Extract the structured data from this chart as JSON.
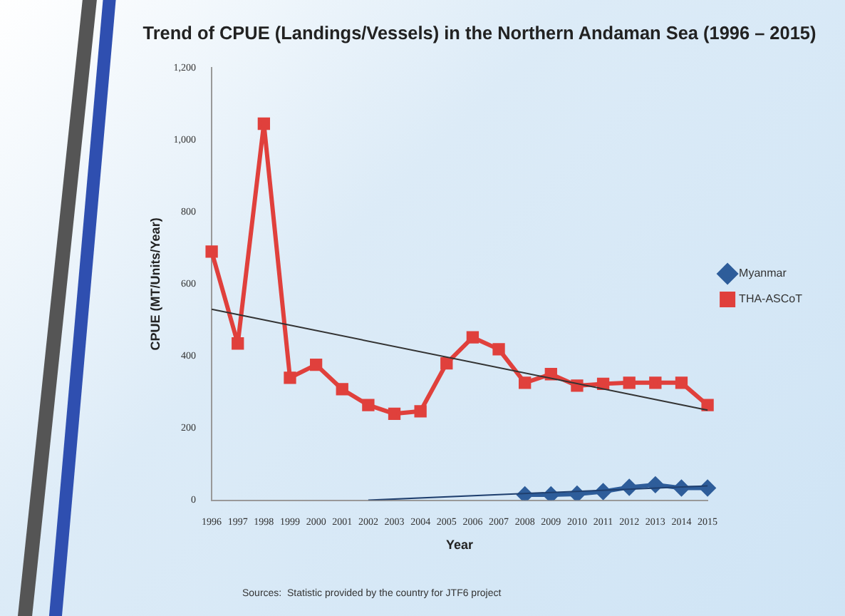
{
  "chart_data": {
    "type": "line",
    "title": "Trend of CPUE (Landings/Vessels) in the Northern Andaman Sea (1996 – 2015)",
    "xlabel": "Year",
    "ylabel": "CPUE (MT/Units/Year)",
    "categories": [
      "1996",
      "1997",
      "1998",
      "1999",
      "2000",
      "2001",
      "2002",
      "2003",
      "2004",
      "2005",
      "2006",
      "2007",
      "2008",
      "2009",
      "2010",
      "2011",
      "2012",
      "2013",
      "2014",
      "2015"
    ],
    "series": [
      {
        "name": "Myanmar",
        "color": "#2e5d9a",
        "marker": "diamond",
        "values": [
          null,
          null,
          null,
          null,
          null,
          null,
          null,
          null,
          null,
          null,
          null,
          null,
          15,
          15,
          17,
          24,
          36,
          43,
          34,
          34
        ]
      },
      {
        "name": "THA-ASCoT",
        "color": "#e0403c",
        "marker": "square",
        "values": [
          690,
          435,
          1045,
          340,
          376,
          308,
          264,
          240,
          247,
          380,
          452,
          419,
          326,
          350,
          318,
          323,
          326,
          326,
          326,
          264
        ]
      },
      {
        "type": "line",
        "color": "#333333",
        "marker": "none",
        "values": [
          530,
          null,
          null,
          null,
          null,
          null,
          null,
          null,
          null,
          null,
          null,
          null,
          null,
          null,
          null,
          null,
          null,
          null,
          null,
          250
        ]
      },
      {
        "type": "line",
        "color": "#1f3f6e",
        "marker": "none",
        "values": [
          null,
          null,
          null,
          null,
          null,
          null,
          0,
          null,
          null,
          null,
          null,
          null,
          null,
          null,
          null,
          null,
          null,
          null,
          null,
          40
        ]
      }
    ],
    "ylim": [
      0,
      1200
    ],
    "yticks": [
      0,
      200,
      400,
      600,
      800,
      {
        "value": 1000,
        "label": "1,000"
      },
      {
        "value": 1200,
        "label": "1,200"
      }
    ],
    "grid": false,
    "legend": "right",
    "annotations": [
      "Sources:  Statistic provided by the country for JTF6 project"
    ]
  }
}
